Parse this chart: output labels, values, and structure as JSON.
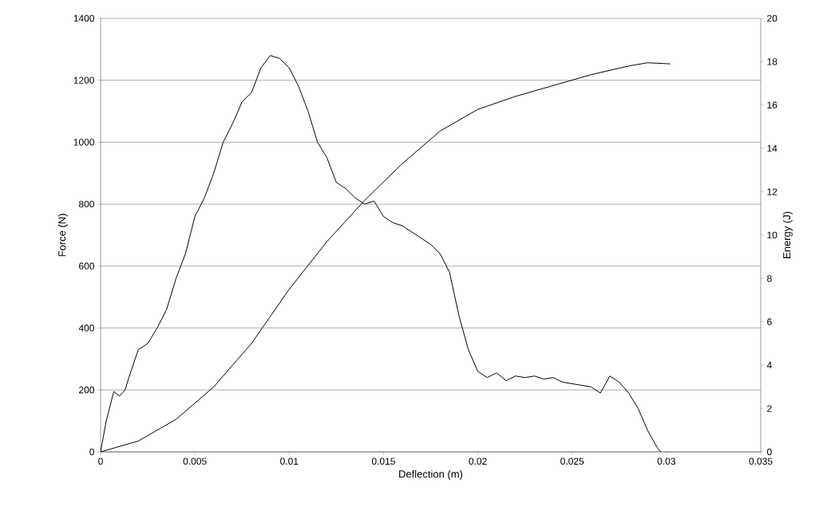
{
  "chart_data": {
    "type": "line",
    "xlabel": "Deflection (m)",
    "ylabel": "Force (N)",
    "y2label": "Energy (J)",
    "xlim": [
      0,
      0.035
    ],
    "xticks": [
      0,
      0.005,
      0.01,
      0.015,
      0.02,
      0.025,
      0.03,
      0.035
    ],
    "ylim": [
      0,
      1400
    ],
    "yticks": [
      0,
      200,
      400,
      600,
      800,
      1000,
      1200,
      1400
    ],
    "y2lim": [
      0,
      20
    ],
    "y2ticks": [
      0,
      2,
      4,
      6,
      8,
      10,
      12,
      14,
      16,
      18,
      20
    ],
    "grid": "y",
    "marker": "none",
    "line_style": "solid",
    "series": [
      {
        "color": "#000000",
        "x": [
          0,
          0.0003,
          0.0007,
          0.001,
          0.0013,
          0.0015,
          0.002,
          0.0025,
          0.003,
          0.0035,
          0.004,
          0.0045,
          0.005,
          0.0055,
          0.006,
          0.0065,
          0.007,
          0.0075,
          0.008,
          0.0085,
          0.009,
          0.0095,
          0.01,
          0.0105,
          0.011,
          0.0115,
          0.012,
          0.0125,
          0.013,
          0.0135,
          0.014,
          0.0145,
          0.015,
          0.0155,
          0.016,
          0.0165,
          0.017,
          0.0175,
          0.018,
          0.0185,
          0.019,
          0.0195,
          0.02,
          0.0205,
          0.021,
          0.0215,
          0.022,
          0.0225,
          0.023,
          0.0235,
          0.024,
          0.0245,
          0.025,
          0.0255,
          0.026,
          0.0265,
          0.027,
          0.0275,
          0.028,
          0.0285,
          0.029,
          0.0295,
          0.0297
        ],
        "values": [
          0,
          100,
          195,
          180,
          200,
          240,
          330,
          350,
          400,
          460,
          560,
          640,
          760,
          820,
          900,
          1000,
          1060,
          1130,
          1160,
          1240,
          1280,
          1270,
          1240,
          1180,
          1100,
          1000,
          950,
          870,
          850,
          820,
          800,
          810,
          760,
          740,
          730,
          710,
          690,
          670,
          640,
          580,
          440,
          330,
          260,
          240,
          255,
          230,
          245,
          240,
          245,
          235,
          240,
          225,
          220,
          215,
          210,
          190,
          245,
          225,
          190,
          140,
          70,
          15,
          0
        ]
      },
      {
        "color": "#000000",
        "axis": "y2",
        "x": [
          0,
          0.002,
          0.004,
          0.006,
          0.008,
          0.01,
          0.012,
          0.014,
          0.016,
          0.018,
          0.02,
          0.022,
          0.024,
          0.026,
          0.028,
          0.029,
          0.0302
        ],
        "values": [
          0,
          0.5,
          1.5,
          3.0,
          5.0,
          7.5,
          9.7,
          11.6,
          13.3,
          14.8,
          15.8,
          16.4,
          16.9,
          17.4,
          17.8,
          17.95,
          17.9
        ]
      }
    ]
  }
}
